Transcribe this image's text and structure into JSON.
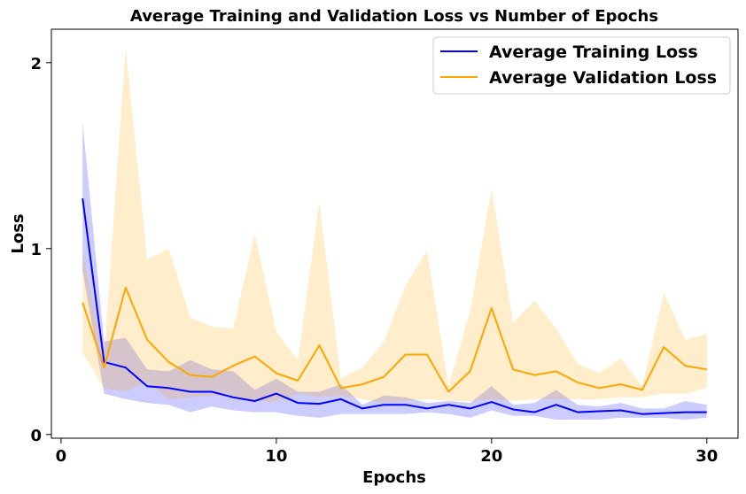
{
  "chart_data": {
    "type": "line",
    "title": "Average Training and Validation Loss vs Number of Epochs",
    "xlabel": "Epochs",
    "ylabel": "Loss",
    "xlim": [
      -0.45,
      31.45
    ],
    "ylim": [
      -0.02,
      2.18
    ],
    "xticks": [
      0,
      10,
      20,
      30
    ],
    "yticks": [
      0,
      1,
      2
    ],
    "grid": false,
    "legend_position": "top-right",
    "x": [
      1,
      2,
      3,
      4,
      5,
      6,
      7,
      8,
      9,
      10,
      11,
      12,
      13,
      14,
      15,
      16,
      17,
      18,
      19,
      20,
      21,
      22,
      23,
      24,
      25,
      26,
      27,
      28,
      29,
      30
    ],
    "series": [
      {
        "name": "Average Training Loss",
        "color": "#0000ff",
        "band_color": "#0000ff",
        "values": [
          1.27,
          0.39,
          0.36,
          0.26,
          0.25,
          0.23,
          0.23,
          0.2,
          0.18,
          0.22,
          0.17,
          0.165,
          0.19,
          0.14,
          0.16,
          0.16,
          0.14,
          0.16,
          0.14,
          0.175,
          0.135,
          0.12,
          0.16,
          0.12,
          0.125,
          0.13,
          0.11,
          0.115,
          0.12,
          0.12
        ],
        "lower": [
          0.88,
          0.22,
          0.19,
          0.17,
          0.16,
          0.12,
          0.15,
          0.13,
          0.12,
          0.12,
          0.1,
          0.09,
          0.11,
          0.11,
          0.11,
          0.11,
          0.12,
          0.11,
          0.09,
          0.13,
          0.1,
          0.1,
          0.08,
          0.08,
          0.08,
          0.09,
          0.09,
          0.09,
          0.08,
          0.09
        ],
        "upper": [
          1.68,
          0.5,
          0.52,
          0.35,
          0.34,
          0.4,
          0.35,
          0.34,
          0.24,
          0.3,
          0.23,
          0.23,
          0.27,
          0.16,
          0.21,
          0.2,
          0.17,
          0.18,
          0.17,
          0.26,
          0.16,
          0.17,
          0.24,
          0.16,
          0.15,
          0.17,
          0.14,
          0.14,
          0.18,
          0.16
        ]
      },
      {
        "name": "Average Validation Loss",
        "color": "#ffa500",
        "band_color": "#ffa500",
        "values": [
          0.71,
          0.36,
          0.79,
          0.51,
          0.39,
          0.32,
          0.31,
          0.37,
          0.42,
          0.33,
          0.29,
          0.48,
          0.25,
          0.27,
          0.31,
          0.43,
          0.43,
          0.23,
          0.34,
          0.68,
          0.35,
          0.32,
          0.34,
          0.28,
          0.25,
          0.27,
          0.24,
          0.47,
          0.37,
          0.35
        ],
        "lower": [
          0.44,
          0.25,
          0.23,
          0.28,
          0.19,
          0.2,
          0.21,
          0.2,
          0.18,
          0.18,
          0.22,
          0.2,
          0.21,
          0.19,
          0.17,
          0.18,
          0.19,
          0.18,
          0.18,
          0.19,
          0.18,
          0.19,
          0.19,
          0.19,
          0.19,
          0.2,
          0.2,
          0.22,
          0.22,
          0.25
        ],
        "upper": [
          0.98,
          0.42,
          2.08,
          0.94,
          1.0,
          0.63,
          0.58,
          0.57,
          1.08,
          0.55,
          0.4,
          1.25,
          0.3,
          0.36,
          0.5,
          0.8,
          0.99,
          0.26,
          0.66,
          1.32,
          0.6,
          0.72,
          0.57,
          0.38,
          0.33,
          0.41,
          0.26,
          0.76,
          0.51,
          0.54
        ]
      }
    ]
  }
}
